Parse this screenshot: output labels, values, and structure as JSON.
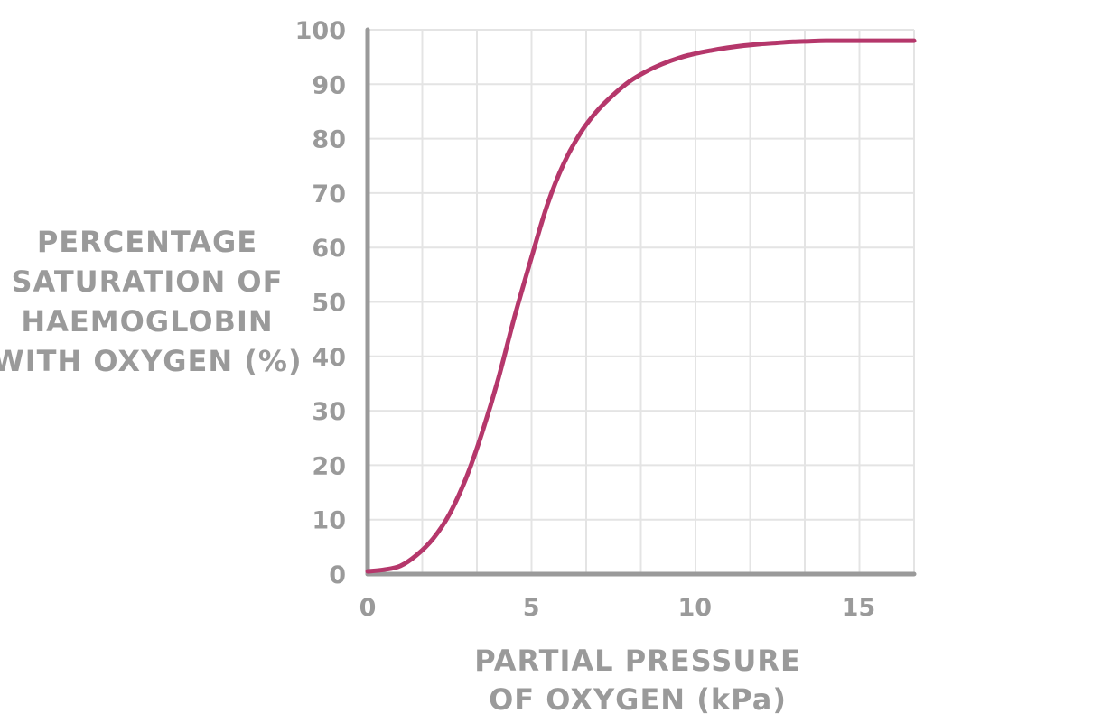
{
  "chart_data": {
    "type": "line",
    "xlabel_lines": [
      "PARTIAL PRESSURE",
      "OF OXYGEN (kPa)"
    ],
    "ylabel_lines": [
      "PERCENTAGE",
      "SATURATION OF",
      "HAEMOGLOBIN",
      "WITH OXYGEN (%)"
    ],
    "xlim": [
      0,
      16.7
    ],
    "ylim": [
      0,
      100
    ],
    "x_ticks": [
      0,
      5,
      10,
      15
    ],
    "y_ticks": [
      0,
      10,
      20,
      30,
      40,
      50,
      60,
      70,
      80,
      90,
      100
    ],
    "grid": true,
    "series": [
      {
        "color": "#b5376b",
        "x": [
          0,
          0.5,
          1,
          1.5,
          2,
          2.5,
          3,
          3.5,
          4,
          4.5,
          5,
          5.5,
          6,
          6.5,
          7,
          7.5,
          8,
          8.5,
          9,
          9.5,
          10,
          10.5,
          11,
          11.5,
          12,
          12.5,
          13,
          13.5,
          14,
          15,
          16,
          16.7
        ],
        "y": [
          0.5,
          0.8,
          1.5,
          3.5,
          6.5,
          11,
          17.5,
          26,
          36,
          47.5,
          58,
          68,
          75.5,
          81,
          85,
          88,
          90.5,
          92.3,
          93.7,
          94.8,
          95.6,
          96.2,
          96.7,
          97.1,
          97.4,
          97.6,
          97.8,
          97.9,
          98,
          98,
          98,
          98
        ]
      }
    ]
  }
}
